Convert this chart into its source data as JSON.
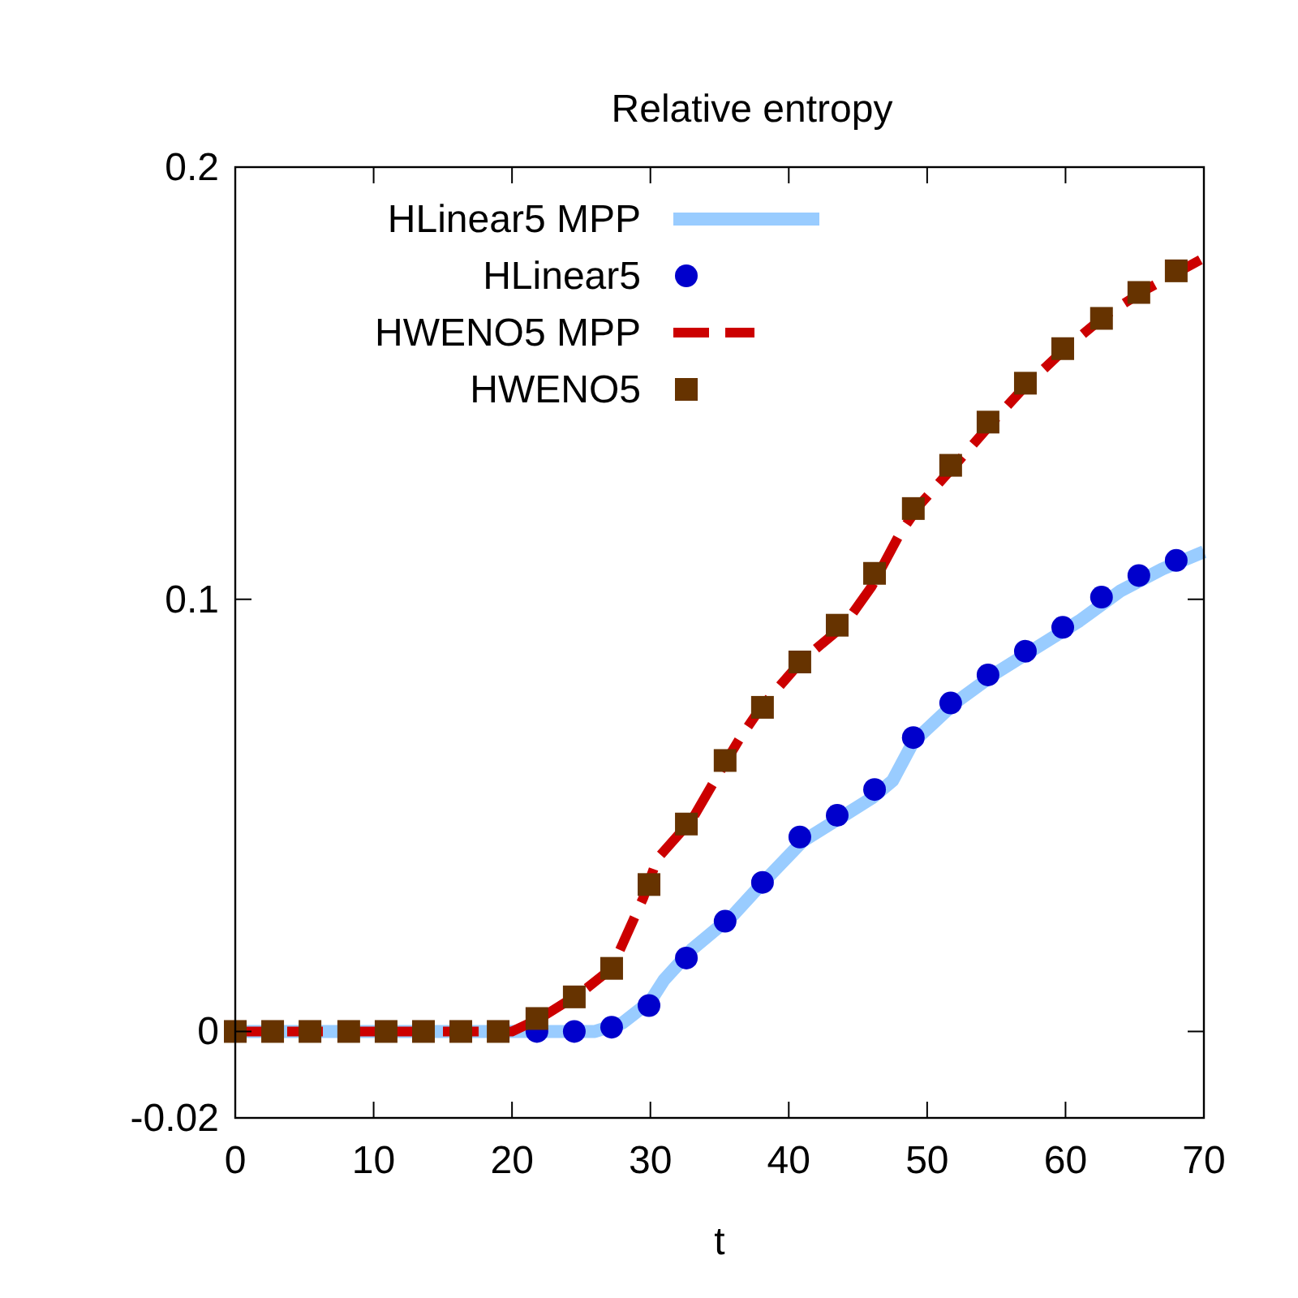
{
  "chart_data": {
    "type": "line",
    "title": "Relative entropy",
    "xlabel": "t",
    "xlim": [
      0,
      70
    ],
    "xticks": [
      0,
      10,
      20,
      30,
      40,
      50,
      60,
      70
    ],
    "ylim": [
      -0.02,
      0.2
    ],
    "yticks": [
      -0.02,
      0,
      0.1,
      0.2
    ],
    "grid": false,
    "legend": "top left",
    "series": [
      {
        "name": "HLinear5 MPP",
        "type": "line",
        "color": "#99ccff",
        "line_style": "solid",
        "x": [
          0,
          20,
          26,
          28,
          30,
          31,
          33,
          36,
          38,
          41,
          44,
          46,
          47.5,
          49,
          52,
          55,
          58,
          61,
          64,
          67,
          70
        ],
        "values": [
          0,
          0,
          0,
          0.002,
          0.007,
          0.012,
          0.019,
          0.027,
          0.034,
          0.044,
          0.05,
          0.054,
          0.058,
          0.067,
          0.076,
          0.083,
          0.089,
          0.095,
          0.102,
          0.107,
          0.111
        ]
      },
      {
        "name": "HLinear5",
        "type": "scatter",
        "marker": "circle",
        "color": "#0000cc",
        "x": [
          21.8,
          24.5,
          27.2,
          29.9,
          32.6,
          35.4,
          38.1,
          40.8,
          43.5,
          46.2,
          49.0,
          51.7,
          54.4,
          57.1,
          59.8,
          62.6,
          65.3,
          68.0
        ],
        "values": [
          0,
          0,
          0.001,
          0.006,
          0.017,
          0.0255,
          0.0345,
          0.045,
          0.05,
          0.056,
          0.068,
          0.076,
          0.0825,
          0.088,
          0.0935,
          0.1005,
          0.1055,
          0.109
        ]
      },
      {
        "name": "HWENO5 MPP",
        "type": "line",
        "color": "#cc0000",
        "line_style": "dashed",
        "x": [
          0,
          20,
          22,
          25,
          27.2,
          29.5,
          30.5,
          33,
          35,
          36.5,
          38,
          41,
          44,
          46,
          48,
          49.5,
          52,
          55,
          57,
          60,
          63,
          66,
          70
        ],
        "values": [
          0,
          0,
          0.003,
          0.009,
          0.0146,
          0.031,
          0.04,
          0.049,
          0.06,
          0.068,
          0.075,
          0.086,
          0.094,
          0.103,
          0.115,
          0.122,
          0.131,
          0.142,
          0.149,
          0.158,
          0.166,
          0.172,
          0.179
        ]
      },
      {
        "name": "HWENO5",
        "type": "scatter",
        "marker": "square",
        "color": "#663300",
        "x": [
          0,
          2.7,
          5.4,
          8.2,
          10.9,
          13.6,
          16.3,
          19.0,
          21.8,
          24.5,
          27.2,
          29.9,
          32.6,
          35.4,
          38.1,
          40.8,
          43.5,
          46.2,
          49.0,
          51.7,
          54.4,
          57.1,
          59.8,
          62.6,
          65.3,
          68.0
        ],
        "values": [
          0,
          0,
          0,
          0,
          0,
          0,
          0,
          0,
          0.003,
          0.008,
          0.0146,
          0.034,
          0.048,
          0.0627,
          0.075,
          0.0855,
          0.094,
          0.106,
          0.121,
          0.131,
          0.141,
          0.15,
          0.158,
          0.165,
          0.171,
          0.176
        ]
      }
    ]
  }
}
